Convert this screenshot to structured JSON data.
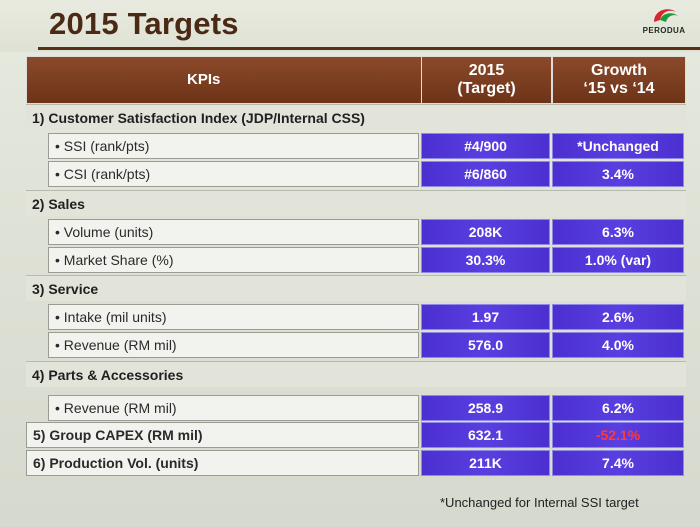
{
  "slide": {
    "title": "2015 Targets",
    "logo_text": "PERODUA"
  },
  "table": {
    "header": {
      "kpi": "KPIs",
      "target_line1": "2015",
      "target_line2": "(Target)",
      "growth_line1": "Growth",
      "growth_line2": "‘15 vs ‘14"
    },
    "sections": [
      {
        "label": "1) Customer Satisfaction Index (JDP/Internal CSS)",
        "items": [
          {
            "label": "• SSI (rank/pts)",
            "target": "#4/900",
            "growth": "*Unchanged"
          },
          {
            "label": "• CSI (rank/pts)",
            "target": "#6/860",
            "growth": "3.4%"
          }
        ]
      },
      {
        "label": "2) Sales",
        "items": [
          {
            "label": "• Volume (units)",
            "target": "208K",
            "growth": "6.3%"
          },
          {
            "label": "• Market Share (%)",
            "target": "30.3%",
            "growth": "1.0% (var)"
          }
        ]
      },
      {
        "label": "3) Service",
        "items": [
          {
            "label": "• Intake (mil units)",
            "target": "1.97",
            "growth": "2.6%"
          },
          {
            "label": "• Revenue (RM mil)",
            "target": "576.0",
            "growth": "4.0%"
          }
        ]
      },
      {
        "label": "4) Parts & Accessories",
        "items": [
          {
            "label": "• Revenue (RM mil)",
            "target": "258.9",
            "growth": "6.2%"
          }
        ]
      }
    ],
    "single_rows": [
      {
        "label": "5) Group CAPEX (RM mil)",
        "target": "632.1",
        "growth": "-52.1%"
      },
      {
        "label": "6) Production Vol. (units)",
        "target": "211K",
        "growth": "7.4%"
      }
    ]
  },
  "footnote": "*Unchanged for Internal SSI target",
  "colors": {
    "title": "#4a2a14",
    "header_bg": "#7a3d20",
    "value_bg": "#5238d6",
    "negative": "#ff3a3a"
  }
}
